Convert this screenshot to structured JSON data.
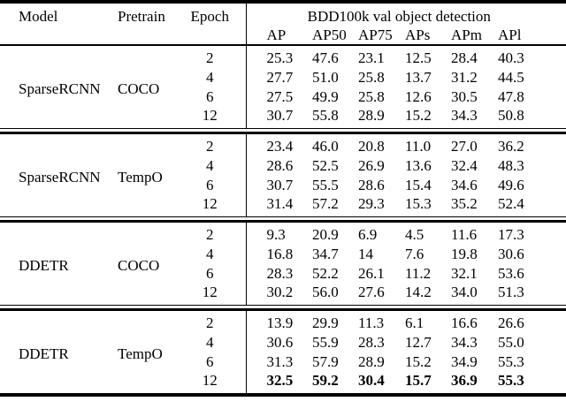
{
  "table": {
    "ink_color": "#000000",
    "background_color": "#ffffff",
    "header": {
      "model": "Model",
      "pretrain": "Pretrain",
      "epoch": "Epoch",
      "group": "BDD100k val object detection",
      "metrics": [
        "AP",
        "AP50",
        "AP75",
        "APs",
        "APm",
        "APl"
      ]
    },
    "blocks": [
      {
        "model": "SparseRCNN",
        "pretrain": "COCO",
        "rows": [
          {
            "epoch": "2",
            "bold": false,
            "values": [
              "25.3",
              "47.6",
              "23.1",
              "12.5",
              "28.4",
              "40.3"
            ]
          },
          {
            "epoch": "4",
            "bold": false,
            "values": [
              "27.7",
              "51.0",
              "25.8",
              "13.7",
              "31.2",
              "44.5"
            ]
          },
          {
            "epoch": "6",
            "bold": false,
            "values": [
              "27.5",
              "49.9",
              "25.8",
              "12.6",
              "30.5",
              "47.8"
            ]
          },
          {
            "epoch": "12",
            "bold": false,
            "values": [
              "30.7",
              "55.8",
              "28.9",
              "15.2",
              "34.3",
              "50.8"
            ]
          }
        ]
      },
      {
        "model": "SparseRCNN",
        "pretrain": "TempO",
        "rows": [
          {
            "epoch": "2",
            "bold": false,
            "values": [
              "23.4",
              "46.0",
              "20.8",
              "11.0",
              "27.0",
              "36.2"
            ]
          },
          {
            "epoch": "4",
            "bold": false,
            "values": [
              "28.6",
              "52.5",
              "26.9",
              "13.6",
              "32.4",
              "48.3"
            ]
          },
          {
            "epoch": "6",
            "bold": false,
            "values": [
              "30.7",
              "55.5",
              "28.6",
              "15.4",
              "34.6",
              "49.6"
            ]
          },
          {
            "epoch": "12",
            "bold": false,
            "values": [
              "31.4",
              "57.2",
              "29.3",
              "15.3",
              "35.2",
              "52.4"
            ]
          }
        ]
      },
      {
        "model": "DDETR",
        "pretrain": "COCO",
        "rows": [
          {
            "epoch": "2",
            "bold": false,
            "values": [
              "9.3",
              "20.9",
              "6.9",
              "4.5",
              "11.6",
              "17.3"
            ]
          },
          {
            "epoch": "4",
            "bold": false,
            "values": [
              "16.8",
              "34.7",
              "14",
              "7.6",
              "19.8",
              "30.6"
            ]
          },
          {
            "epoch": "6",
            "bold": false,
            "values": [
              "28.3",
              "52.2",
              "26.1",
              "11.2",
              "32.1",
              "53.6"
            ]
          },
          {
            "epoch": "12",
            "bold": false,
            "values": [
              "30.2",
              "56.0",
              "27.6",
              "14.2",
              "34.0",
              "51.3"
            ]
          }
        ]
      },
      {
        "model": "DDETR",
        "pretrain": "TempO",
        "rows": [
          {
            "epoch": "2",
            "bold": false,
            "values": [
              "13.9",
              "29.9",
              "11.3",
              "6.1",
              "16.6",
              "26.6"
            ]
          },
          {
            "epoch": "4",
            "bold": false,
            "values": [
              "30.6",
              "55.9",
              "28.3",
              "12.7",
              "34.3",
              "55.0"
            ]
          },
          {
            "epoch": "6",
            "bold": false,
            "values": [
              "31.3",
              "57.9",
              "28.9",
              "15.2",
              "34.9",
              "55.3"
            ]
          },
          {
            "epoch": "12",
            "bold": true,
            "values": [
              "32.5",
              "59.2",
              "30.4",
              "15.7",
              "36.9",
              "55.3"
            ]
          }
        ]
      }
    ]
  }
}
